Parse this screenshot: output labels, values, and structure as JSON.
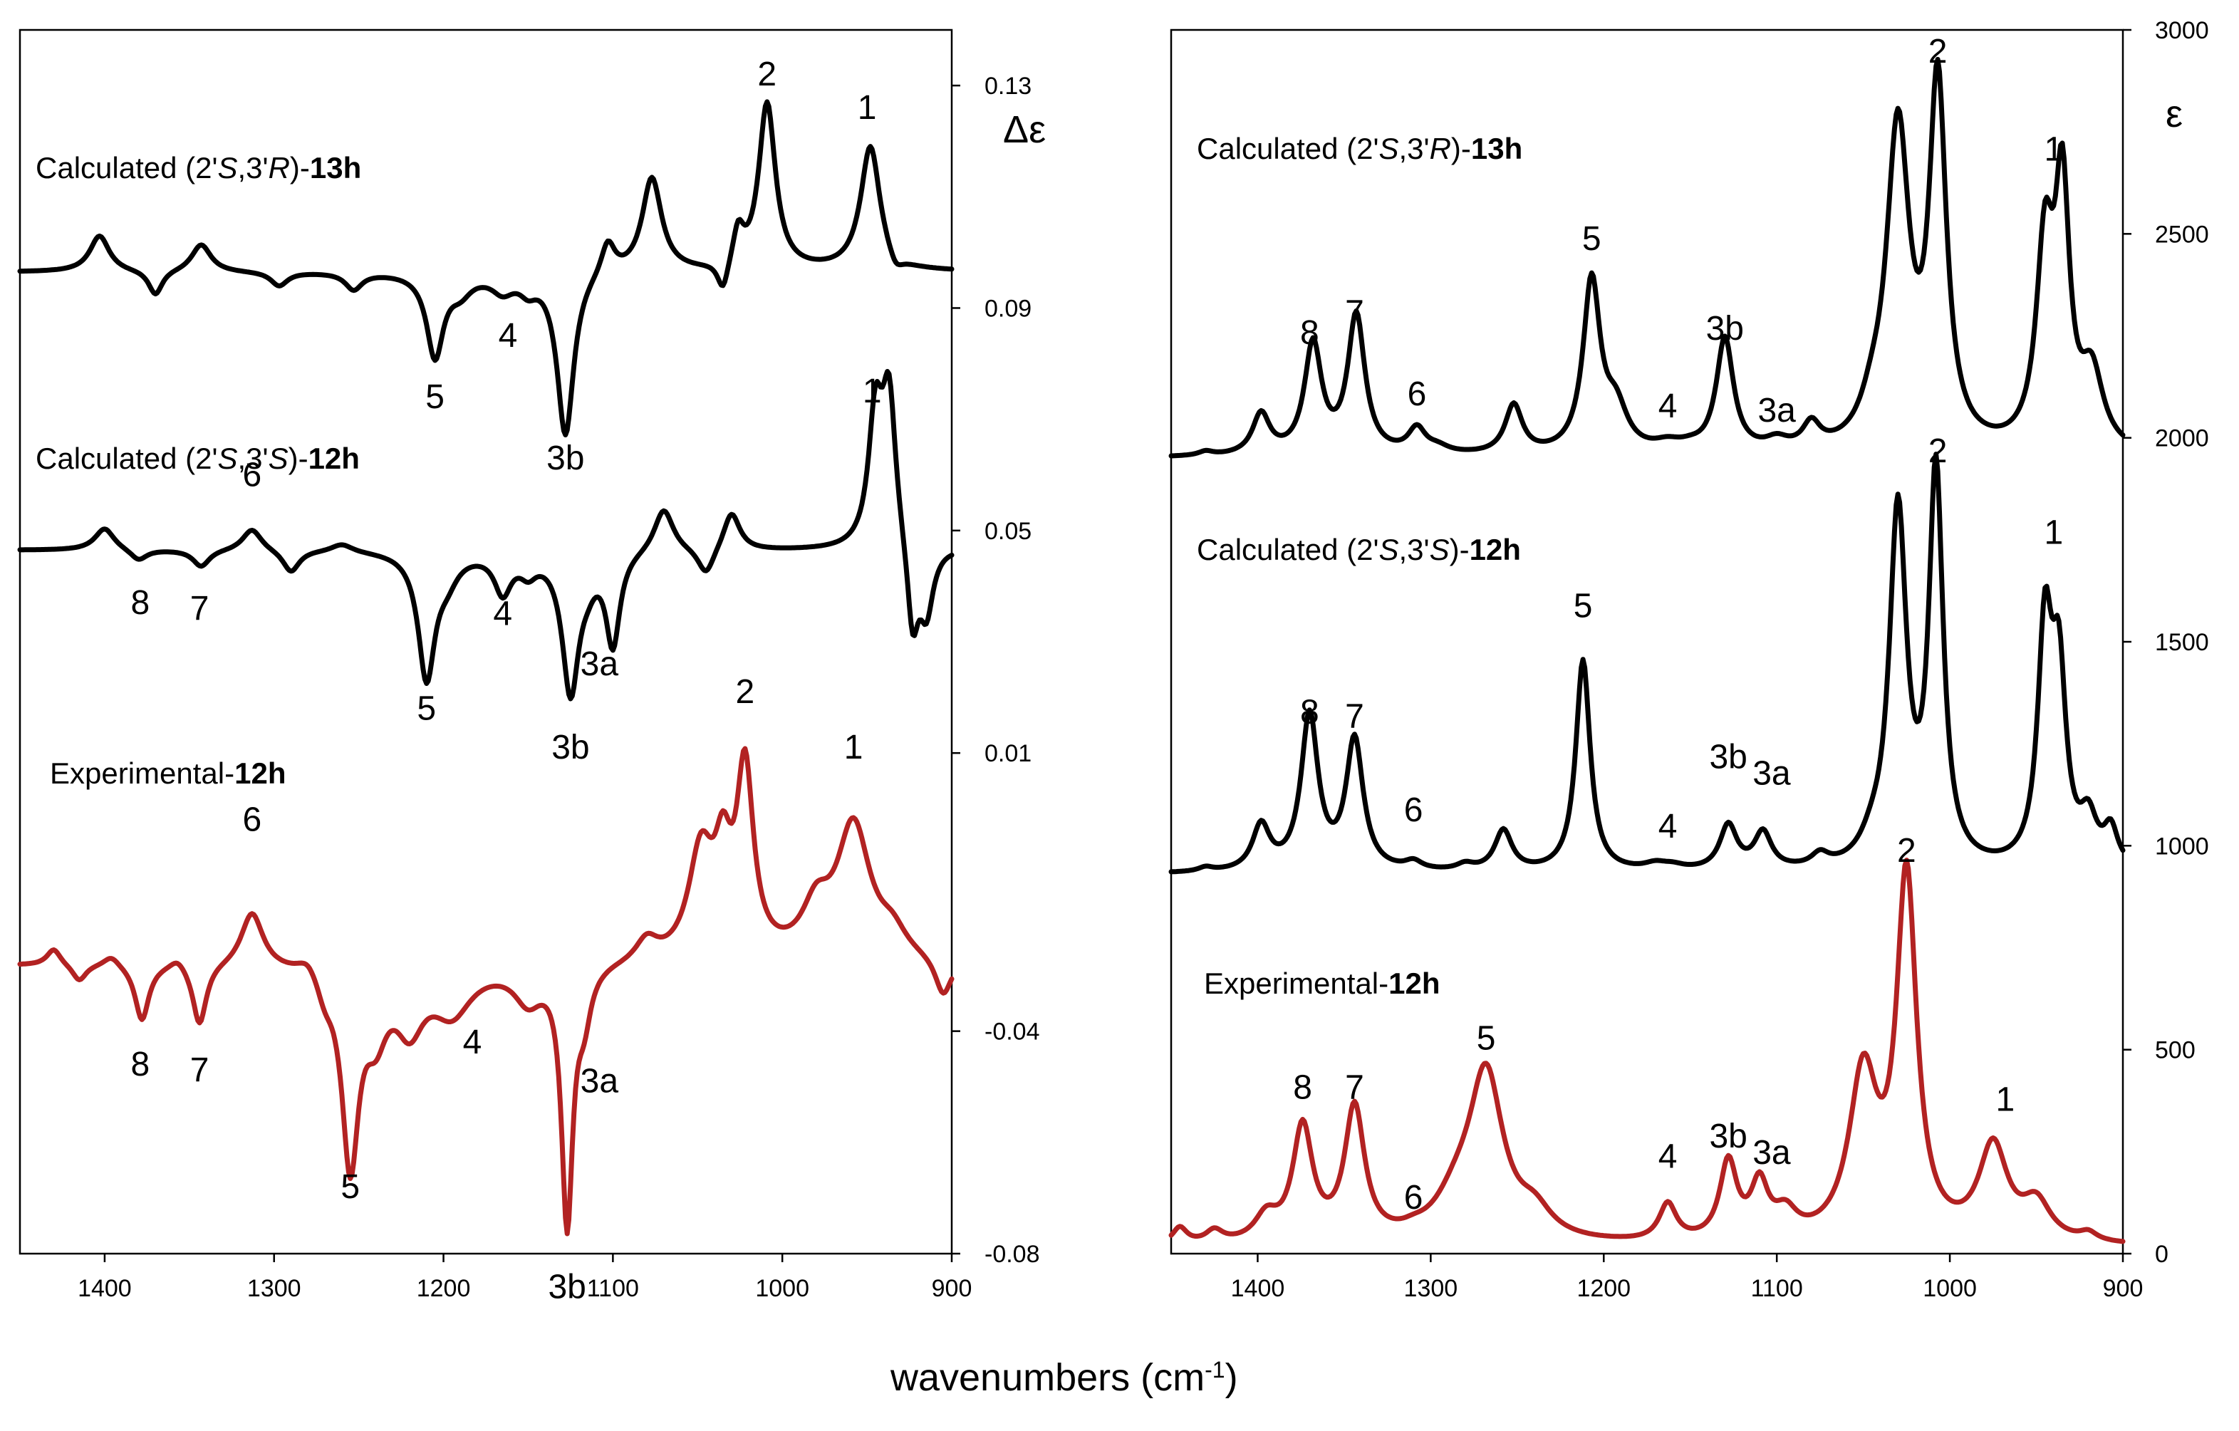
{
  "figure": {
    "xlabel_main": "wavenumbers (cm",
    "xlabel_sup": "-1",
    "xlabel_end": ")"
  },
  "chart_data": [
    {
      "type": "line",
      "title": "",
      "ylabel": "Δε",
      "xlim": [
        1450,
        900
      ],
      "ylim": [
        -0.08,
        0.14
      ],
      "x_ticks": [
        "1400",
        "1300",
        "1200",
        "1100",
        "1000",
        "900"
      ],
      "y_ticks": [
        "0.13",
        "0.09",
        "0.05",
        "0.01",
        "-0.04",
        "-0.08"
      ],
      "y_tick_values": [
        0.13,
        0.09,
        0.05,
        0.01,
        -0.04,
        -0.08
      ],
      "series": [
        {
          "name_parts": [
            "Calculated (2'",
            "S",
            ",3'",
            "R",
            ")-",
            "13h"
          ],
          "color": "#000000",
          "baseline": 0.0965,
          "bands": [
            [
              1403,
              0.0065,
              7
            ],
            [
              1370,
              -0.0045,
              5
            ],
            [
              1343,
              0.005,
              7
            ],
            [
              1297,
              -0.0025,
              6
            ],
            [
              1253,
              -0.003,
              6
            ],
            [
              1205,
              -0.015,
              6
            ],
            [
              1190,
              -0.003,
              8
            ],
            [
              1165,
              -0.003,
              8
            ],
            [
              1150,
              -0.0025,
              6
            ],
            [
              1128,
              -0.0295,
              6
            ],
            [
              1103,
              0.006,
              5
            ],
            [
              1077,
              0.017,
              7
            ],
            [
              1035,
              -0.0055,
              4
            ],
            [
              1026,
              0.0065,
              4
            ],
            [
              1009,
              0.03,
              6
            ],
            [
              948,
              0.0225,
              7
            ],
            [
              933,
              -0.0025,
              5
            ]
          ],
          "labels": [
            {
              "text": "2",
              "x": 1009,
              "y": 0.13
            },
            {
              "text": "1",
              "x": 950,
              "y": 0.124
            },
            {
              "text": "5",
              "x": 1205,
              "y": 0.072
            },
            {
              "text": "4",
              "x": 1162,
              "y": 0.083
            },
            {
              "text": "3b",
              "x": 1128,
              "y": 0.061
            }
          ]
        },
        {
          "name_parts": [
            "Calculated (2'",
            "S",
            ",3'",
            "S",
            ")-",
            "12h"
          ],
          "color": "#000000",
          "baseline": 0.0465,
          "bands": [
            [
              1400,
              0.004,
              7
            ],
            [
              1380,
              -0.002,
              6
            ],
            [
              1343,
              -0.003,
              6
            ],
            [
              1313,
              0.004,
              7
            ],
            [
              1290,
              -0.004,
              6
            ],
            [
              1260,
              0.0015,
              8
            ],
            [
              1210,
              -0.0225,
              6
            ],
            [
              1198,
              -0.004,
              8
            ],
            [
              1165,
              -0.007,
              6
            ],
            [
              1150,
              -0.003,
              6
            ],
            [
              1125,
              -0.025,
              6
            ],
            [
              1115,
              -0.003,
              6
            ],
            [
              1100,
              -0.0165,
              5
            ],
            [
              1070,
              0.008,
              7
            ],
            [
              1045,
              -0.005,
              6
            ],
            [
              1030,
              0.007,
              6
            ],
            [
              945,
              0.023,
              5
            ],
            [
              937,
              0.027,
              5
            ],
            [
              923,
              -0.016,
              4
            ],
            [
              915,
              -0.012,
              5
            ]
          ],
          "labels": [
            {
              "text": "1",
              "x": 947,
              "y": 0.073
            },
            {
              "text": "6",
              "x": 1313,
              "y": 0.058
            },
            {
              "text": "8",
              "x": 1379,
              "y": 0.035
            },
            {
              "text": "7",
              "x": 1344,
              "y": 0.034
            },
            {
              "text": "4",
              "x": 1165,
              "y": 0.033
            },
            {
              "text": "3a",
              "x": 1108,
              "y": 0.024
            },
            {
              "text": "5",
              "x": 1210,
              "y": 0.016
            },
            {
              "text": "3b",
              "x": 1125,
              "y": 0.009
            }
          ]
        },
        {
          "name_parts": [
            "Experimental-",
            "",
            "",
            "",
            "",
            "12h"
          ],
          "color": "#b22222",
          "baseline": -0.028,
          "bands": [
            [
              1430,
              0.003,
              5
            ],
            [
              1415,
              -0.003,
              5
            ],
            [
              1396,
              0.002,
              6
            ],
            [
              1378,
              -0.01,
              5
            ],
            [
              1357,
              0.002,
              6
            ],
            [
              1344,
              -0.011,
              5
            ],
            [
              1313,
              0.01,
              8
            ],
            [
              1280,
              0.003,
              8
            ],
            [
              1270,
              -0.004,
              6
            ],
            [
              1255,
              -0.035,
              6
            ],
            [
              1240,
              -0.01,
              8
            ],
            [
              1220,
              -0.01,
              10
            ],
            [
              1195,
              -0.008,
              14
            ],
            [
              1150,
              -0.006,
              10
            ],
            [
              1127,
              -0.046,
              4
            ],
            [
              1117,
              -0.008,
              5
            ],
            [
              1080,
              0.004,
              8
            ],
            [
              1048,
              0.019,
              9
            ],
            [
              1035,
              0.015,
              6
            ],
            [
              1022,
              0.033,
              6
            ],
            [
              958,
              0.024,
              12
            ],
            [
              980,
              0.008,
              10
            ],
            [
              935,
              0.004,
              10
            ],
            [
              905,
              -0.007,
              6
            ]
          ],
          "labels": [
            {
              "text": "2",
              "x": 1022,
              "y": 0.019
            },
            {
              "text": "1",
              "x": 958,
              "y": 0.009
            },
            {
              "text": "6",
              "x": 1313,
              "y": -0.004
            },
            {
              "text": "8",
              "x": 1379,
              "y": -0.048
            },
            {
              "text": "7",
              "x": 1344,
              "y": -0.049
            },
            {
              "text": "4",
              "x": 1183,
              "y": -0.044
            },
            {
              "text": "3a",
              "x": 1108,
              "y": -0.051
            },
            {
              "text": "5",
              "x": 1255,
              "y": -0.07
            },
            {
              "text": "3b",
              "x": 1127,
              "y": -0.088
            }
          ]
        }
      ]
    },
    {
      "type": "line",
      "title": "",
      "ylabel": "ε",
      "xlim": [
        1450,
        900
      ],
      "ylim": [
        0,
        3000
      ],
      "x_ticks": [
        "1400",
        "1300",
        "1200",
        "1100",
        "1000",
        "900"
      ],
      "y_ticks": [
        "3000",
        "2500",
        "2000",
        "1500",
        "1000",
        "500",
        "0"
      ],
      "y_tick_values": [
        3000,
        2500,
        2000,
        1500,
        1000,
        500,
        0
      ],
      "series": [
        {
          "name_parts": [
            "Calculated (2'",
            "S",
            ",3'",
            "R",
            ")-",
            "13h"
          ],
          "color": "#000000",
          "baseline": 1950,
          "bands": [
            [
              1430,
              10,
              5
            ],
            [
              1398,
              100,
              6
            ],
            [
              1368,
              270,
              6
            ],
            [
              1343,
              340,
              6
            ],
            [
              1308,
              60,
              6
            ],
            [
              1296,
              15,
              8
            ],
            [
              1252,
              120,
              6
            ],
            [
              1207,
              420,
              6
            ],
            [
              1193,
              100,
              8
            ],
            [
              1163,
              20,
              10
            ],
            [
              1150,
              10,
              8
            ],
            [
              1130,
              280,
              6
            ],
            [
              1100,
              25,
              8
            ],
            [
              1080,
              60,
              6
            ],
            [
              1045,
              60,
              8
            ],
            [
              1030,
              780,
              8
            ],
            [
              1007,
              880,
              6
            ],
            [
              945,
              480,
              6
            ],
            [
              935,
              600,
              5
            ],
            [
              918,
              180,
              8
            ]
          ],
          "labels": [
            {
              "text": "2",
              "x": 1007,
              "y": 2920
            },
            {
              "text": "1",
              "x": 940,
              "y": 2680
            },
            {
              "text": "5",
              "x": 1207,
              "y": 2460
            },
            {
              "text": "8",
              "x": 1370,
              "y": 2230
            },
            {
              "text": "7",
              "x": 1344,
              "y": 2280
            },
            {
              "text": "6",
              "x": 1308,
              "y": 2080
            },
            {
              "text": "3b",
              "x": 1130,
              "y": 2240
            },
            {
              "text": "4",
              "x": 1163,
              "y": 2050
            },
            {
              "text": "3a",
              "x": 1100,
              "y": 2040
            }
          ]
        },
        {
          "name_parts": [
            "Calculated (2'",
            "S",
            ",3'",
            "S",
            ")-",
            "12h"
          ],
          "color": "#000000",
          "baseline": 930,
          "bands": [
            [
              1430,
              10,
              5
            ],
            [
              1398,
              110,
              6
            ],
            [
              1370,
              380,
              6
            ],
            [
              1344,
              320,
              6
            ],
            [
              1310,
              20,
              6
            ],
            [
              1280,
              15,
              6
            ],
            [
              1258,
              100,
              6
            ],
            [
              1212,
              520,
              5
            ],
            [
              1170,
              15,
              8
            ],
            [
              1160,
              10,
              8
            ],
            [
              1128,
              110,
              6
            ],
            [
              1108,
              90,
              6
            ],
            [
              1075,
              30,
              6
            ],
            [
              1045,
              40,
              8
            ],
            [
              1030,
              870,
              6
            ],
            [
              1008,
              960,
              5
            ],
            [
              945,
              560,
              5
            ],
            [
              937,
              440,
              5
            ],
            [
              920,
              110,
              6
            ],
            [
              907,
              90,
              5
            ]
          ],
          "labels": [
            {
              "text": "2",
              "x": 1007,
              "y": 1940
            },
            {
              "text": "1",
              "x": 940,
              "y": 1740
            },
            {
              "text": "5",
              "x": 1212,
              "y": 1560
            },
            {
              "text": "8",
              "x": 1370,
              "y": 1300
            },
            {
              "text": "7",
              "x": 1344,
              "y": 1290
            },
            {
              "text": "6",
              "x": 1310,
              "y": 1060
            },
            {
              "text": "3b",
              "x": 1128,
              "y": 1190
            },
            {
              "text": "3a",
              "x": 1103,
              "y": 1150
            },
            {
              "text": "4",
              "x": 1163,
              "y": 1020
            }
          ]
        },
        {
          "name_parts": [
            "Experimental-",
            "",
            "",
            "",
            "",
            "12h"
          ],
          "color": "#b22222",
          "baseline": 15,
          "bands": [
            [
              1445,
              40,
              5
            ],
            [
              1425,
              30,
              6
            ],
            [
              1395,
              60,
              8
            ],
            [
              1374,
              280,
              7
            ],
            [
              1344,
              325,
              7
            ],
            [
              1310,
              10,
              8
            ],
            [
              1285,
              80,
              15
            ],
            [
              1268,
              400,
              12
            ],
            [
              1240,
              60,
              12
            ],
            [
              1163,
              90,
              6
            ],
            [
              1128,
              190,
              6
            ],
            [
              1110,
              130,
              6
            ],
            [
              1095,
              60,
              8
            ],
            [
              1050,
              400,
              10
            ],
            [
              1025,
              880,
              7
            ],
            [
              975,
              230,
              10
            ],
            [
              950,
              90,
              10
            ],
            [
              920,
              20,
              6
            ]
          ],
          "labels": [
            {
              "text": "2",
              "x": 1025,
              "y": 960
            },
            {
              "text": "1",
              "x": 968,
              "y": 350
            },
            {
              "text": "5",
              "x": 1268,
              "y": 500
            },
            {
              "text": "8",
              "x": 1374,
              "y": 380
            },
            {
              "text": "7",
              "x": 1344,
              "y": 380
            },
            {
              "text": "6",
              "x": 1310,
              "y": 110
            },
            {
              "text": "4",
              "x": 1163,
              "y": 210
            },
            {
              "text": "3b",
              "x": 1128,
              "y": 260
            },
            {
              "text": "3a",
              "x": 1103,
              "y": 220
            }
          ]
        }
      ]
    }
  ]
}
